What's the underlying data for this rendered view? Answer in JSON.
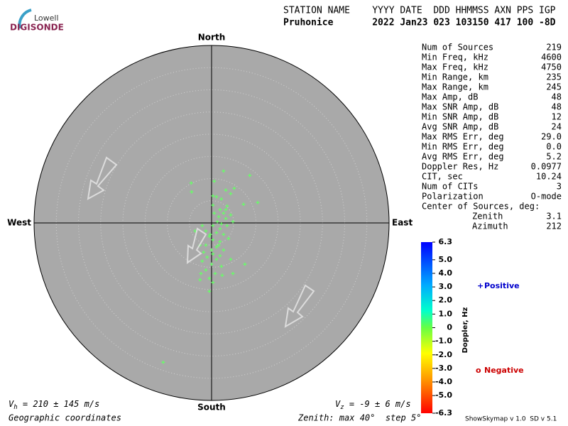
{
  "header": {
    "logo_small": "Lowell",
    "logo_big": "DIGISONDE",
    "line1": "STATION NAME    YYYY DATE  DDD HHMMSS AXN PPS IGP",
    "line2": "Pruhonice       2022 Jan23 023 103150 417 100 -8D"
  },
  "stats": {
    "rows": [
      [
        "Num of Sources",
        "219"
      ],
      [
        "Min Freq, kHz",
        "4600"
      ],
      [
        "Max Freq, kHz",
        "4750"
      ],
      [
        "Min Range, km",
        "235"
      ],
      [
        "Max Range, km",
        "245"
      ],
      [
        "Max Amp, dB",
        "48"
      ],
      [
        "Max SNR Amp, dB",
        "48"
      ],
      [
        "Min SNR Amp, dB",
        "12"
      ],
      [
        "Avg SNR Amp, dB",
        "24"
      ],
      [
        "Max RMS Err, deg",
        "29.0"
      ],
      [
        "Min RMS Err, deg",
        "0.0"
      ],
      [
        "Avg RMS Err, deg",
        "5.2"
      ],
      [
        "Doppler Res, Hz",
        "0.0977"
      ],
      [
        "CIT, sec",
        "10.24"
      ],
      [
        "Num of CITs",
        "3"
      ],
      [
        "Polarization",
        "O-mode"
      ]
    ],
    "center_title": "Center of Sources, deg:",
    "center_rows": [
      [
        "Zenith",
        "3.1"
      ],
      [
        "Azimuth",
        "212"
      ]
    ]
  },
  "chart_data": {
    "type": "polar-scatter",
    "directions": {
      "north": "North",
      "south": "South",
      "east": "East",
      "west": "West"
    },
    "rlim": [
      0,
      40
    ],
    "rticks": [
      5,
      10,
      15,
      20,
      25,
      30,
      35,
      40
    ],
    "series": [
      {
        "name": "Positive",
        "color": "#66ff66",
        "x": [
          2.7,
          8.6,
          -4.6,
          0.6,
          5.1,
          3.2,
          0.3,
          1.1,
          4.3,
          2.2,
          10.4,
          0.3,
          3.5,
          7.2,
          1.9,
          0.6,
          2.7,
          4.3,
          1.6,
          3.2,
          4.8,
          1.3,
          2.2,
          3.5,
          0.3,
          -2.1,
          -1.3,
          1.9,
          1.1,
          2.7,
          -0.5,
          0.3,
          1.9,
          -2.6,
          -1.3,
          1.1,
          0,
          2.7,
          -1.8,
          0.3,
          1.9,
          -1.0,
          1.1,
          4.3,
          7.5,
          -2.1,
          0,
          2.2,
          -1.3,
          0.8,
          -2.4,
          4.8,
          2.4,
          -0.5,
          0.3,
          -2.6,
          -0.5,
          -10.9,
          -4.5,
          -3.7,
          3.8,
          1.6,
          -0.3,
          3.2
        ],
        "values": [
          11.7,
          10.7,
          9.0,
          9.4,
          7.8,
          7.4,
          6.1,
          5.9,
          6.6,
          5.4,
          4.6,
          4.0,
          3.8,
          4.2,
          3.0,
          2.2,
          2.2,
          1.8,
          1.4,
          1.0,
          0.3,
          0.3,
          -0.2,
          -0.6,
          -0.6,
          -0.6,
          -1.8,
          -1.3,
          -2.2,
          -2.6,
          -3.0,
          -3.8,
          -4.2,
          -5.0,
          -5.0,
          -5.4,
          -6.1,
          -6.1,
          -6.6,
          -7.0,
          -7.4,
          -7.7,
          -8.2,
          -8.2,
          -9.3,
          -8.6,
          -9.3,
          -9.8,
          -10.6,
          -11.4,
          -11.4,
          -11.4,
          -11.8,
          -12.5,
          -13.4,
          -12.8,
          -15.4,
          -31.4,
          7.0,
          -1.8,
          -3.5,
          -5.0,
          -2.6,
          3.0
        ]
      }
    ]
  },
  "colorbar": {
    "title": "Doppler, Hz",
    "lim": [
      -6.3,
      6.3
    ],
    "ticks": [
      6.3,
      {
        "value": 5,
        "label": "5.0"
      },
      {
        "value": 4,
        "label": "4.0"
      },
      {
        "value": 3,
        "label": "3.0"
      },
      {
        "value": 2,
        "label": "2.0"
      },
      {
        "value": 1,
        "label": "1.0"
      },
      0,
      {
        "value": -1,
        "label": "-1.0"
      },
      {
        "value": -2,
        "label": "-2.0"
      },
      {
        "value": -3,
        "label": "-3.0"
      },
      {
        "value": -4,
        "label": "-4.0"
      },
      {
        "value": -5,
        "label": "-5.0"
      },
      -6.3
    ]
  },
  "legend": {
    "positive_symbol": "+",
    "positive": "Positive",
    "negative_symbol": "o",
    "negative": "Negative"
  },
  "footer": {
    "vh_v": "V",
    "vh_sub": "h",
    "vh_text": " = 210 ± 145 m/s",
    "vz_v": "V",
    "vz_sub": "z",
    "vz_text": " = -9 ± 6 m/s",
    "coords": "Geographic coordinates",
    "zenith": "Zenith: max 40°  step 5°",
    "version": "ShowSkymap v 1.0  SD v 5.1"
  }
}
